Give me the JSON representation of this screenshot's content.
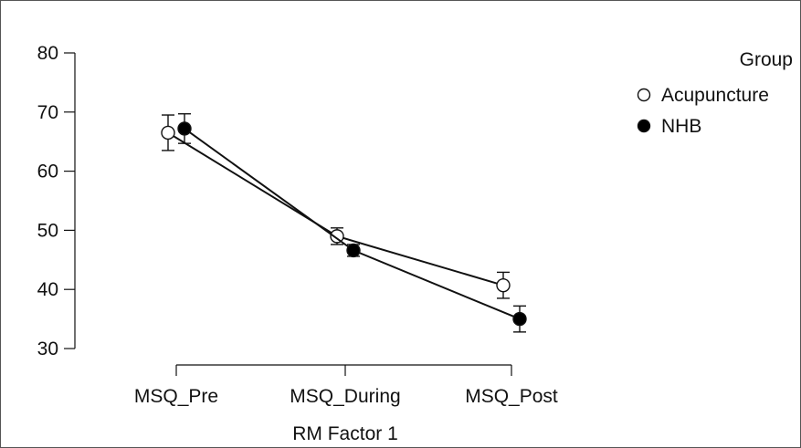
{
  "chart_data": {
    "type": "line",
    "title": "",
    "xlabel": "RM Factor 1",
    "ylabel": "",
    "categories": [
      "MSQ_Pre",
      "MSQ_During",
      "MSQ_Post"
    ],
    "yticks": [
      30,
      40,
      50,
      60,
      70,
      80
    ],
    "ylim": [
      30,
      80
    ],
    "legend": {
      "title": "Group",
      "placement": "top-right"
    },
    "series": [
      {
        "name": "Acupuncture",
        "marker": "open-circle",
        "values": [
          66.5,
          49.0,
          40.7
        ],
        "error_low": [
          63.5,
          47.6,
          38.5
        ],
        "error_high": [
          69.5,
          50.4,
          42.9
        ]
      },
      {
        "name": "NHB",
        "marker": "filled-circle",
        "values": [
          67.2,
          46.6,
          35.0
        ],
        "error_low": [
          64.7,
          45.6,
          32.8
        ],
        "error_high": [
          69.7,
          47.6,
          37.2
        ]
      }
    ],
    "colors": {
      "line": "#111111",
      "open_marker_fill": "#ffffff",
      "filled_marker_fill": "#000000"
    }
  }
}
